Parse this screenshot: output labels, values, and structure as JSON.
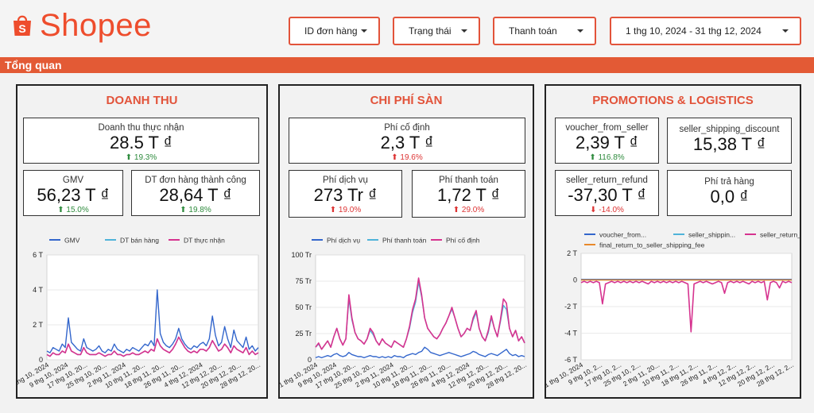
{
  "header": {
    "brand": "Shopee",
    "brand_color": "#ee4d2d",
    "filters": [
      {
        "label": "ID đơn hàng",
        "icon": "chevron-down-icon"
      },
      {
        "label": "Trạng thái",
        "icon": "chevron-down-icon"
      },
      {
        "label": "Thanh toán",
        "icon": "chevron-down-icon"
      },
      {
        "label": "1 thg 10, 2024 - 31 thg 12, 2024",
        "icon": "chevron-down-icon"
      }
    ]
  },
  "section_bar": {
    "label": "Tổng quan",
    "color": "#e35a35"
  },
  "panels": {
    "revenue": {
      "title": "DOANH THU",
      "cards": [
        {
          "label": "Doanh thu thực nhận",
          "value": "28.5 T ₫",
          "change": "19.3%",
          "direction": "up"
        },
        {
          "label": "GMV",
          "value": "56,23 T ₫",
          "change": "15.0%",
          "direction": "up"
        },
        {
          "label": "DT đơn hàng thành công",
          "value": "28,64 T ₫",
          "change": "19.8%",
          "direction": "up"
        }
      ]
    },
    "platform_fees": {
      "title": "CHI PHÍ SÀN",
      "cards": [
        {
          "label": "Phí cố định",
          "value": "2,3 T ₫",
          "change": "19.6%",
          "direction": "up"
        },
        {
          "label": "Phí dịch vụ",
          "value": "273 Tr ₫",
          "change": "19.0%",
          "direction": "up"
        },
        {
          "label": "Phí thanh toán",
          "value": "1,72 T ₫",
          "change": "29.0%",
          "direction": "up"
        }
      ]
    },
    "promotions": {
      "title": "PROMOTIONS & LOGISTICS",
      "cards": [
        {
          "label": "voucher_from_seller",
          "value": "2,39 T ₫",
          "change": "116.8%",
          "direction": "up"
        },
        {
          "label": "seller_shipping_discount",
          "value": "15,38 T ₫",
          "change": "",
          "direction": "none"
        },
        {
          "label": "seller_return_refund",
          "value": "-37,30 T ₫",
          "change": "-14.0%",
          "direction": "down"
        },
        {
          "label": "Phí trả hàng",
          "value": "0,0 ₫",
          "change": "",
          "direction": "none"
        }
      ]
    }
  },
  "chart_data": [
    {
      "type": "line",
      "title": "DOANH THU",
      "legend": [
        "GMV",
        "DT bán hàng",
        "DT thực nhận"
      ],
      "colors": [
        "#3366cc",
        "#4fb3d9",
        "#d6338f"
      ],
      "y_ticks": [
        "0",
        "2 T",
        "4 T",
        "6 T"
      ],
      "ylim": [
        0,
        6
      ],
      "x_ticks": [
        "1 thg 10, 2024",
        "9 thg 10, 2024",
        "17 thg 10, 20...",
        "25 thg 10, 20...",
        "2 thg 11, 2024",
        "10 thg 11, 20...",
        "18 thg 11, 20...",
        "26 thg 11, 20...",
        "4 thg 12, 2024",
        "12 thg 12, 20...",
        "20 thg 12, 20...",
        "28 thg 12, 20..."
      ],
      "series": [
        {
          "name": "GMV",
          "values": [
            0.5,
            0.4,
            0.7,
            0.6,
            0.5,
            0.9,
            0.7,
            2.4,
            1.0,
            0.8,
            0.6,
            0.5,
            1.2,
            0.7,
            0.6,
            0.5,
            0.6,
            0.8,
            0.5,
            0.4,
            0.6,
            0.5,
            0.9,
            0.6,
            0.5,
            0.4,
            0.6,
            0.5,
            0.7,
            0.6,
            0.5,
            0.7,
            0.9,
            0.8,
            1.1,
            0.8,
            4.0,
            1.5,
            1.0,
            0.8,
            0.7,
            0.9,
            1.2,
            1.8,
            1.2,
            0.9,
            0.7,
            0.6,
            0.8,
            0.7,
            0.9,
            1.0,
            0.8,
            1.2,
            2.5,
            1.4,
            0.8,
            1.0,
            1.9,
            1.2,
            0.7,
            1.7,
            1.1,
            0.9,
            0.7,
            1.3,
            0.6,
            0.8,
            0.5,
            0.7
          ]
        },
        {
          "name": "DT bán hàng",
          "values": [
            0.3,
            0.2,
            0.4,
            0.3,
            0.3,
            0.5,
            0.4,
            0.9,
            0.5,
            0.4,
            0.3,
            0.3,
            0.7,
            0.4,
            0.3,
            0.3,
            0.3,
            0.4,
            0.3,
            0.2,
            0.3,
            0.3,
            0.5,
            0.3,
            0.3,
            0.2,
            0.3,
            0.3,
            0.4,
            0.3,
            0.3,
            0.4,
            0.5,
            0.4,
            0.6,
            0.5,
            1.2,
            0.8,
            0.6,
            0.5,
            0.4,
            0.6,
            0.9,
            1.3,
            1.0,
            0.7,
            0.5,
            0.4,
            0.5,
            0.4,
            0.6,
            0.6,
            0.5,
            0.7,
            1.1,
            0.8,
            0.5,
            0.6,
            0.9,
            0.7,
            0.4,
            0.8,
            0.6,
            0.5,
            0.4,
            0.7,
            0.3,
            0.5,
            0.3,
            0.4
          ]
        },
        {
          "name": "DT thực nhận",
          "values": [
            0.3,
            0.2,
            0.4,
            0.3,
            0.3,
            0.5,
            0.4,
            0.9,
            0.5,
            0.4,
            0.3,
            0.3,
            0.7,
            0.4,
            0.3,
            0.3,
            0.3,
            0.4,
            0.3,
            0.2,
            0.3,
            0.3,
            0.5,
            0.3,
            0.3,
            0.2,
            0.3,
            0.3,
            0.4,
            0.3,
            0.3,
            0.4,
            0.5,
            0.4,
            0.6,
            0.5,
            1.2,
            0.8,
            0.6,
            0.5,
            0.4,
            0.6,
            0.9,
            1.3,
            1.0,
            0.7,
            0.5,
            0.4,
            0.5,
            0.4,
            0.6,
            0.6,
            0.5,
            0.7,
            1.1,
            0.8,
            0.5,
            0.6,
            0.9,
            0.7,
            0.4,
            0.8,
            0.6,
            0.5,
            0.4,
            0.7,
            0.3,
            0.5,
            0.3,
            0.4
          ]
        }
      ]
    },
    {
      "type": "line",
      "title": "CHI PHÍ SÀN",
      "legend": [
        "Phí dịch vụ",
        "Phí thanh toán",
        "Phí cố định"
      ],
      "colors": [
        "#3366cc",
        "#4fb3d9",
        "#d6338f"
      ],
      "y_ticks": [
        "0",
        "25 Tr",
        "50 Tr",
        "75 Tr",
        "100 Tr"
      ],
      "ylim": [
        0,
        100
      ],
      "x_ticks": [
        "1 thg 10, 2024",
        "9 thg 10, 2024",
        "17 thg 10, 20...",
        "25 thg 10, 20...",
        "2 thg 11, 2024",
        "10 thg 11, 20...",
        "18 thg 11, 20...",
        "26 thg 11, 20...",
        "4 thg 12, 2024",
        "12 thg 12, 20...",
        "20 thg 12, 20...",
        "28 thg 12, 20..."
      ],
      "series": [
        {
          "name": "Phí dịch vụ",
          "values": [
            2,
            3,
            2,
            3,
            4,
            3,
            5,
            6,
            4,
            3,
            4,
            7,
            5,
            4,
            3,
            3,
            2,
            3,
            4,
            3,
            3,
            2,
            3,
            2,
            3,
            2,
            4,
            3,
            3,
            2,
            4,
            5,
            6,
            5,
            7,
            8,
            12,
            10,
            7,
            6,
            5,
            4,
            5,
            6,
            7,
            6,
            5,
            4,
            3,
            4,
            5,
            6,
            8,
            7,
            5,
            4,
            3,
            5,
            6,
            5,
            4,
            6,
            8,
            10,
            6,
            4,
            5,
            3,
            4,
            3
          ]
        },
        {
          "name": "Phí thanh toán",
          "values": [
            12,
            15,
            10,
            14,
            18,
            12,
            22,
            30,
            20,
            14,
            20,
            58,
            38,
            26,
            20,
            18,
            15,
            20,
            28,
            24,
            18,
            14,
            20,
            16,
            14,
            12,
            18,
            16,
            14,
            12,
            20,
            30,
            45,
            55,
            74,
            60,
            40,
            30,
            26,
            22,
            20,
            24,
            30,
            35,
            42,
            48,
            40,
            30,
            22,
            25,
            30,
            28,
            38,
            45,
            30,
            22,
            18,
            26,
            40,
            30,
            22,
            36,
            52,
            48,
            30,
            22,
            28,
            18,
            22,
            16
          ]
        },
        {
          "name": "Phí cố định",
          "values": [
            12,
            16,
            10,
            14,
            18,
            12,
            22,
            30,
            20,
            14,
            20,
            62,
            40,
            26,
            20,
            18,
            15,
            20,
            30,
            26,
            18,
            14,
            20,
            16,
            14,
            12,
            18,
            16,
            14,
            12,
            20,
            32,
            48,
            58,
            78,
            62,
            40,
            30,
            26,
            22,
            20,
            24,
            30,
            35,
            42,
            50,
            40,
            30,
            22,
            25,
            30,
            28,
            40,
            47,
            30,
            22,
            18,
            28,
            42,
            30,
            22,
            38,
            58,
            54,
            30,
            22,
            28,
            18,
            22,
            16
          ]
        }
      ]
    },
    {
      "type": "line",
      "title": "PROMOTIONS & LOGISTICS",
      "legend": [
        "voucher_from...",
        "seller_shippin...",
        "seller_return_r...",
        "final_return_to_seller_shipping_fee"
      ],
      "colors": [
        "#3366cc",
        "#4fb3d9",
        "#d6338f",
        "#e8892b"
      ],
      "y_ticks": [
        "-6 T",
        "-4 T",
        "-2 T",
        "0",
        "2 T"
      ],
      "ylim": [
        -6,
        2
      ],
      "x_ticks": [
        "1 thg 10, 2024",
        "9 thg 10, 2...",
        "17 thg 10, 2...",
        "25 thg 10, 2...",
        "2 thg 11, 20...",
        "10 thg 11, 2...",
        "18 thg 11, 2...",
        "26 thg 11, 2...",
        "4 thg 12, 2...",
        "12 thg 12, 2...",
        "20 thg 12, 2...",
        "28 thg 12, 2..."
      ],
      "series": [
        {
          "name": "voucher_from...",
          "values": [
            0.05,
            0.05,
            0.05,
            0.05,
            0.05,
            0.05,
            0.05,
            0.05,
            0.05,
            0.05,
            0.05,
            0.05,
            0.05,
            0.05,
            0.05,
            0.05,
            0.05,
            0.05,
            0.05,
            0.05,
            0.05,
            0.05,
            0.05,
            0.05,
            0.05,
            0.05,
            0.05,
            0.05,
            0.05,
            0.05,
            0.05,
            0.05,
            0.05,
            0.05,
            0.05,
            0.05,
            0.05,
            0.05,
            0.05,
            0.05,
            0.05,
            0.05,
            0.05,
            0.05,
            0.05,
            0.05,
            0.05,
            0.05,
            0.05,
            0.05,
            0.05,
            0.05,
            0.05,
            0.05,
            0.05,
            0.05,
            0.05,
            0.05,
            0.05,
            0.05,
            0.05,
            0.05,
            0.05,
            0.05,
            0.05,
            0.05,
            0.05,
            0.05,
            0.05,
            0.05
          ]
        },
        {
          "name": "seller_shippin...",
          "values": [
            0,
            0,
            0,
            0,
            0,
            0,
            0,
            0,
            0,
            0,
            0,
            0,
            0,
            0,
            0,
            0,
            0,
            0,
            0,
            0,
            0,
            0,
            0,
            0,
            0,
            0,
            0,
            0,
            0,
            0,
            0,
            0,
            0,
            0,
            0,
            0,
            0,
            0,
            0,
            0,
            0,
            0,
            0,
            0,
            0,
            0,
            0,
            0,
            0,
            0,
            0,
            0,
            0,
            0,
            0,
            0,
            0,
            0,
            0,
            0,
            0,
            0,
            0,
            0,
            0,
            0,
            0,
            0,
            0,
            0
          ]
        },
        {
          "name": "seller_return_r...",
          "values": [
            -0.2,
            -0.1,
            -0.2,
            -0.1,
            -0.2,
            -0.1,
            -0.2,
            -1.8,
            -0.3,
            -0.2,
            -0.1,
            -0.2,
            -0.1,
            -0.2,
            -0.1,
            -0.2,
            -0.1,
            -0.2,
            -0.1,
            -0.2,
            -0.1,
            -0.2,
            -0.3,
            -0.1,
            -0.2,
            -0.1,
            -0.2,
            -0.1,
            -0.2,
            -0.1,
            -0.2,
            -0.1,
            -0.2,
            -0.1,
            -0.2,
            -0.3,
            -3.9,
            -0.3,
            -0.2,
            -0.1,
            -0.2,
            -0.1,
            -0.2,
            -0.3,
            -0.2,
            -0.1,
            -0.2,
            -1.0,
            -0.2,
            -0.1,
            -0.2,
            -0.1,
            -0.2,
            -0.1,
            -0.2,
            -0.3,
            -0.1,
            -0.2,
            -0.1,
            -0.2,
            -0.1,
            -1.5,
            -0.2,
            -0.1,
            -0.2,
            -0.6,
            -0.1,
            -0.2,
            -0.1,
            -0.2
          ]
        },
        {
          "name": "final_return_to_seller_shipping_fee",
          "values": [
            0,
            0,
            0,
            0,
            0,
            0,
            0,
            0,
            0,
            0,
            0,
            0,
            0,
            0,
            0,
            0,
            0,
            0,
            0,
            0,
            0,
            0,
            0,
            0,
            0,
            0,
            0,
            0,
            0,
            0,
            0,
            0,
            0,
            0,
            0,
            0,
            0,
            0,
            0,
            0,
            0,
            0,
            0,
            0,
            0,
            0,
            0,
            0,
            0,
            0,
            0,
            0,
            0,
            0,
            0,
            0,
            0,
            0,
            0,
            0,
            0,
            0,
            0,
            0,
            0,
            0,
            0,
            0,
            0,
            0
          ]
        }
      ]
    }
  ]
}
